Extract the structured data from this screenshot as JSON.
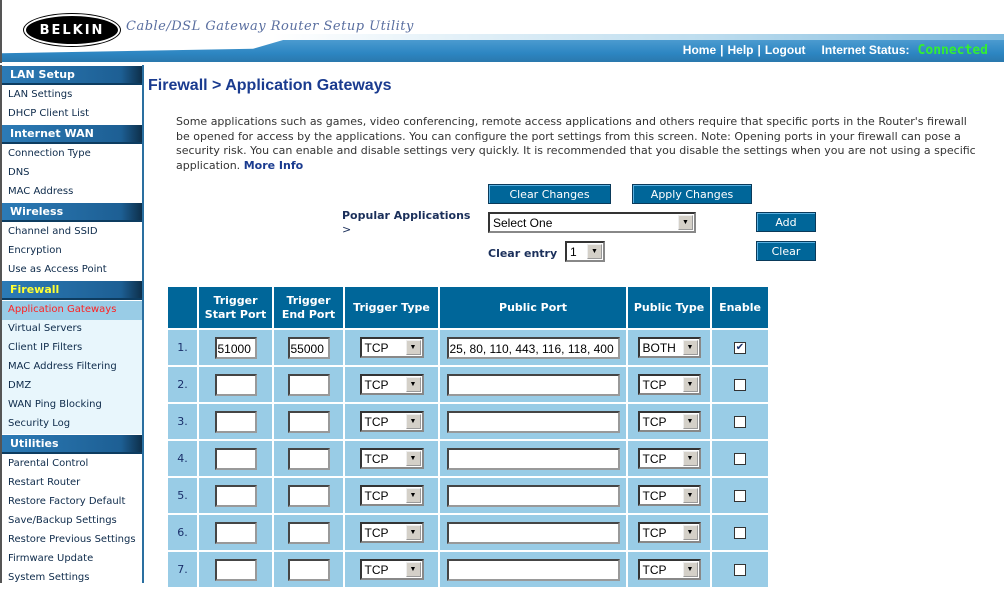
{
  "header": {
    "logo": "BELKIN",
    "title": "Cable/DSL Gateway Router Setup Utility",
    "nav": [
      "Home",
      "Help",
      "Logout"
    ],
    "status_label": "Internet Status:",
    "status_value": "Connected"
  },
  "colors": {
    "accent": "#006699",
    "row": "#99cce6",
    "status": "#33ee33",
    "selected_item": "#ff2222"
  },
  "sidebar": [
    {
      "title": "LAN Setup",
      "items": [
        "LAN Settings",
        "DHCP Client List"
      ]
    },
    {
      "title": "Internet WAN",
      "items": [
        "Connection Type",
        "DNS",
        "MAC Address"
      ]
    },
    {
      "title": "Wireless",
      "items": [
        "Channel and SSID",
        "Encryption",
        "Use as Access Point"
      ]
    },
    {
      "title": "Firewall",
      "items": [
        "Application Gateways",
        "Virtual Servers",
        "Client IP Filters",
        "MAC Address Filtering",
        "DMZ",
        "WAN Ping Blocking",
        "Security Log"
      ],
      "selected": "Application Gateways"
    },
    {
      "title": "Utilities",
      "items": [
        "Parental Control",
        "Restart Router",
        "Restore Factory Default",
        "Save/Backup Settings",
        "Restore Previous Settings",
        "Firmware Update",
        "System Settings"
      ]
    }
  ],
  "main": {
    "title": "Firewall > Application Gateways",
    "intro": "Some applications such as games, video conferencing, remote access applications and others require that specific ports in the Router's firewall be opened for access by the applications. You can configure the port settings from this screen. Note: Opening ports in your firewall can pose a security risk. You can enable and disable settings very quickly. It is recommended that you disable the settings when you are not using a specific application.",
    "more_info": "More Info",
    "clear_changes": "Clear Changes",
    "apply_changes": "Apply Changes",
    "popular_label": "Popular Applications",
    "popular_arrow": ">",
    "popular_value": "Select One",
    "add": "Add",
    "clear_entry_label": "Clear entry",
    "clear_entry_value": "1",
    "clear": "Clear",
    "columns": [
      "",
      "Trigger\nStart Port",
      "Trigger\nEnd Port",
      "Trigger Type",
      "Public Port",
      "Public Type",
      "Enable"
    ],
    "rows": [
      {
        "num": "1.",
        "start": "51000",
        "end": "55000",
        "ttype": "TCP",
        "port": "25, 80, 110, 443, 116, 118, 400",
        "ptype": "BOTH",
        "enabled": true
      },
      {
        "num": "2.",
        "start": "",
        "end": "",
        "ttype": "TCP",
        "port": "",
        "ptype": "TCP",
        "enabled": false
      },
      {
        "num": "3.",
        "start": "",
        "end": "",
        "ttype": "TCP",
        "port": "",
        "ptype": "TCP",
        "enabled": false
      },
      {
        "num": "4.",
        "start": "",
        "end": "",
        "ttype": "TCP",
        "port": "",
        "ptype": "TCP",
        "enabled": false
      },
      {
        "num": "5.",
        "start": "",
        "end": "",
        "ttype": "TCP",
        "port": "",
        "ptype": "TCP",
        "enabled": false
      },
      {
        "num": "6.",
        "start": "",
        "end": "",
        "ttype": "TCP",
        "port": "",
        "ptype": "TCP",
        "enabled": false
      },
      {
        "num": "7.",
        "start": "",
        "end": "",
        "ttype": "TCP",
        "port": "",
        "ptype": "TCP",
        "enabled": false
      }
    ]
  }
}
